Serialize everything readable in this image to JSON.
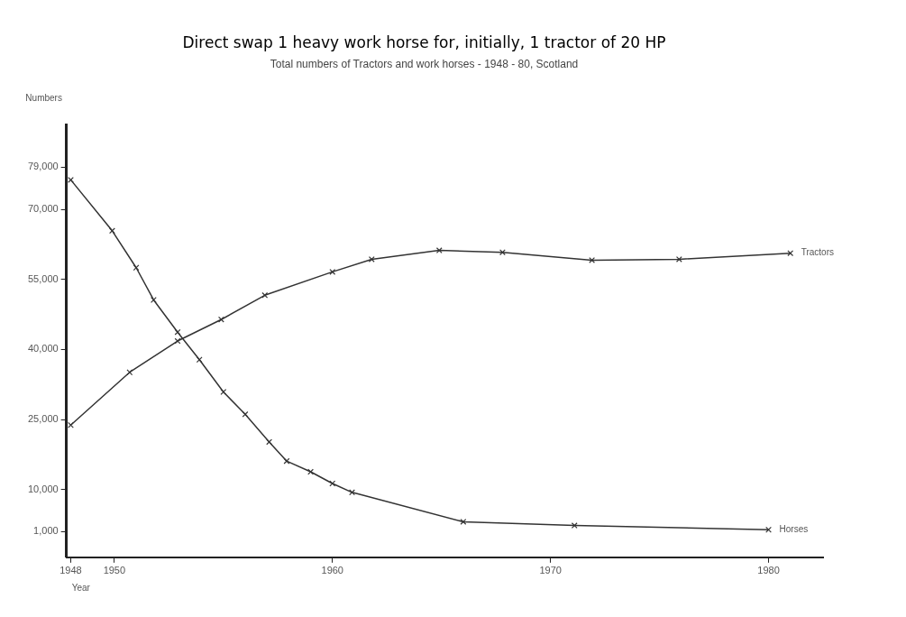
{
  "chart_data": {
    "type": "line",
    "title": "Direct swap 1 heavy work horse for, initially, 1 tractor of 20 HP",
    "subtitle": "Total numbers of Tractors and work horses - 1948 - 80, Scotland",
    "xlabel": "Year",
    "ylabel": "Numbers",
    "xlim": [
      1947.8,
      1982.5
    ],
    "xticks": [
      1948,
      1950,
      1960,
      1970,
      1980
    ],
    "ylim": [
      -4500,
      88000
    ],
    "yticks": [
      {
        "value": 1000,
        "label": "1,000"
      },
      {
        "value": 10000,
        "label": "10,000"
      },
      {
        "value": 25000,
        "label": "25,000"
      },
      {
        "value": 40000,
        "label": "40,000"
      },
      {
        "value": 55000,
        "label": "55,000"
      },
      {
        "value": 70000,
        "label": "70,000"
      },
      {
        "value": 79000,
        "label": "79,000"
      }
    ],
    "grid": false,
    "legend": false,
    "marker": "cross",
    "line_style": "solid",
    "series": [
      {
        "name": "Tractors",
        "color": "#333333",
        "x": [
          1948,
          1950.7,
          1952.9,
          1954.9,
          1956.9,
          1960,
          1961.8,
          1964.9,
          1967.8,
          1971.9,
          1975.9,
          1981
        ],
        "values": [
          23800,
          35100,
          41800,
          46400,
          51600,
          56600,
          59300,
          61200,
          60800,
          59100,
          59300,
          60600
        ]
      },
      {
        "name": "Horses",
        "color": "#333333",
        "x": [
          1948,
          1949.9,
          1951,
          1951.8,
          1952.9,
          1953.9,
          1955,
          1956,
          1957.1,
          1957.9,
          1959,
          1960,
          1960.9,
          1966,
          1971.1,
          1980
        ],
        "values": [
          76300,
          65400,
          57500,
          50600,
          43700,
          37800,
          30900,
          26100,
          20200,
          16100,
          13800,
          11300,
          9400,
          3100,
          2300,
          1400
        ]
      }
    ]
  }
}
